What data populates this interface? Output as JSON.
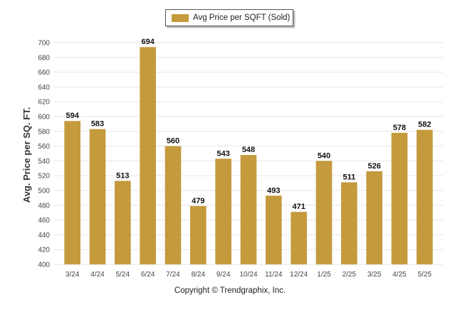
{
  "legend": {
    "label": "Avg Price per SQFT (Sold)"
  },
  "footer": {
    "copyright": "Copyright © Trendgraphix, Inc."
  },
  "colors": {
    "bar": "#C49A3C",
    "grid": "#e6e6e6",
    "axis_text": "#444444",
    "label_text": "#111111"
  },
  "chart_data": {
    "type": "bar",
    "title": "",
    "xlabel": "",
    "ylabel": "Avg. Price per SQ. FT.",
    "categories": [
      "3/24",
      "4/24",
      "5/24",
      "6/24",
      "7/24",
      "8/24",
      "9/24",
      "10/24",
      "11/24",
      "12/24",
      "1/25",
      "2/25",
      "3/25",
      "4/25",
      "5/25"
    ],
    "series": [
      {
        "name": "Avg Price per SQFT (Sold)",
        "values": [
          594,
          583,
          513,
          694,
          560,
          479,
          543,
          548,
          493,
          471,
          540,
          511,
          526,
          578,
          582
        ]
      }
    ],
    "ylim": [
      400,
      700
    ],
    "yticks": [
      400,
      420,
      440,
      460,
      480,
      500,
      520,
      540,
      560,
      580,
      600,
      620,
      640,
      660,
      680,
      700
    ],
    "grid": true,
    "legend_position": "top-center",
    "data_labels": true
  }
}
